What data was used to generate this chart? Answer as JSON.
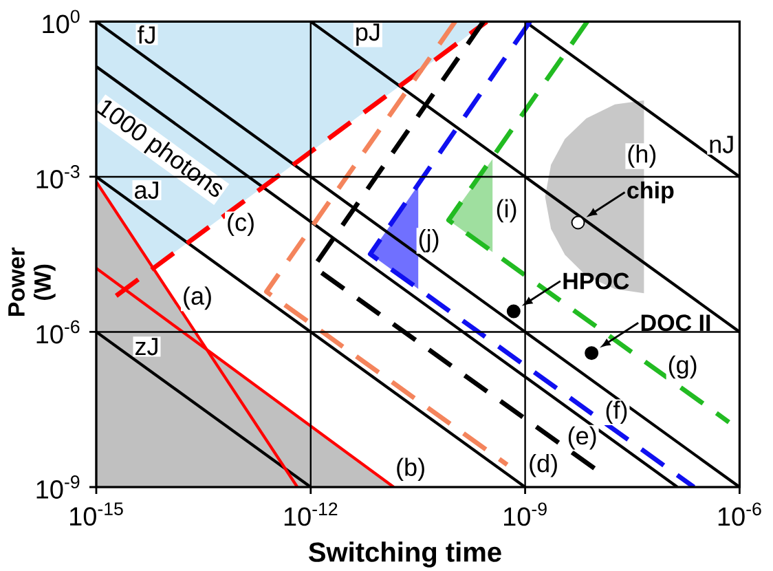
{
  "chart_data": {
    "type": "line",
    "xlabel": "Switching time",
    "ylabel": "Power (W)",
    "log": "xy",
    "xlim": [
      1e-15,
      1e-06
    ],
    "ylim": [
      1e-09,
      1
    ],
    "xticks": [
      {
        "value": 1e-15,
        "label": "10$^{-15}$"
      },
      {
        "value": 1e-12,
        "label": "10$^{-12}$"
      },
      {
        "value": 1e-09,
        "label": "10$^{-9}$"
      },
      {
        "value": 1e-06,
        "label": "10$^{-6}$"
      }
    ],
    "yticks": [
      {
        "value": 1e-09,
        "label": "10$^{-9}$"
      },
      {
        "value": 1e-06,
        "label": "10$^{-6}$"
      },
      {
        "value": 0.001,
        "label": "10$^{-3}$"
      },
      {
        "value": 1,
        "label": "10$^{0}$"
      }
    ],
    "grid": true,
    "series": [
      {
        "type": "area",
        "color": "#cde8f6",
        "x": [
          1e-15,
          6.2e-15,
          2.9e-10
        ],
        "values": [
          null,
          null,
          null
        ],
        "lower": [
          0.0008,
          1.7e-05,
          1
        ],
        "upper": [
          1,
          1,
          1
        ]
      },
      {
        "type": "area",
        "color": "#c0c0c0",
        "x": [
          1e-15,
          3.5e-14,
          1.45e-11
        ],
        "values": [
          0.0008,
          4.7e-07,
          1e-09
        ]
      },
      {
        "type": "area",
        "color": "#c8c8c8",
        "x": [
          1.9e-09,
          2.3e-09,
          3.6e-09,
          7.2e-09,
          1.8e-08,
          4.6e-08
        ],
        "values": [
          null,
          null,
          null,
          null,
          null,
          null
        ],
        "lower": [
          0.00041,
          9.8e-05,
          3.1e-05,
          1.2e-05,
          6.8e-06,
          5.6e-06
        ],
        "upper": [
          0.00041,
          0.0017,
          0.0054,
          0.0135,
          0.025,
          0.03
        ]
      },
      {
        "type": "area",
        "color": "#9fdf9f",
        "x": [
          8.5e-11,
          3.5e-10
        ],
        "values": [
          null,
          null
        ],
        "lower": [
          0.000145,
          3.5e-05
        ],
        "upper": [
          0.000145,
          0.0022
        ]
      },
      {
        "type": "area",
        "color": "#7070ff",
        "x": [
          6.8e-12,
          3.2e-11
        ],
        "values": [
          null,
          null
        ],
        "lower": [
          3.2e-05,
          6.8e-06
        ],
        "upper": [
          3.2e-05,
          0.00069
        ]
      },
      {
        "color": "#000000",
        "x": [
          1e-15,
          1e-06
        ],
        "values": [
          1,
          1e-09
        ]
      },
      {
        "color": "#000000",
        "x": [
          1e-12,
          1e-06
        ],
        "values": [
          1,
          1e-06
        ]
      },
      {
        "color": "#000000",
        "x": [
          1e-09,
          1e-06
        ],
        "values": [
          1,
          0.001
        ]
      },
      {
        "color": "#000000",
        "x": [
          1e-15,
          1e-09
        ],
        "values": [
          0.001,
          1e-09
        ]
      },
      {
        "color": "#000000",
        "x": [
          1e-15,
          1e-12
        ],
        "values": [
          1e-06,
          1e-09
        ]
      },
      {
        "name": "1000 photons",
        "color": "#000000",
        "x": [
          1e-15,
          1.35e-07
        ],
        "values": [
          0.135,
          1e-09
        ]
      },
      {
        "color": "#ff0000",
        "x": [
          1e-15,
          6.5e-13
        ],
        "values": [
          0.0008,
          1e-09
        ]
      },
      {
        "color": "#ff0000",
        "x": [
          1e-15,
          1.45e-11
        ],
        "values": [
          1.7e-05,
          1e-09
        ]
      },
      {
        "color": "#ff0000",
        "line_style": "dashed",
        "x": [
          1.9e-15,
          2.9e-10
        ],
        "values": [
          5e-06,
          1
        ]
      },
      {
        "color": "#f4845c",
        "line_style": "dashed",
        "x": [
          1.05e-10,
          2.4e-13,
          5.6e-10
        ],
        "values": [
          1,
          6e-06,
          2.7e-09
        ]
      },
      {
        "color": "#000000",
        "line_style": "dashed",
        "x": [
          2.6e-10,
          1.1e-12,
          1.07e-08
        ],
        "values": [
          1,
          1.8e-05,
          2e-09
        ]
      },
      {
        "color": "#1010f0",
        "line_style": "dashed",
        "x": [
          1.17e-09,
          6.8e-12,
          2.3e-07
        ],
        "values": [
          1,
          3.2e-05,
          1e-09
        ]
      },
      {
        "color": "#22bb22",
        "line_style": "dashed",
        "x": [
          7.4e-09,
          8.5e-11,
          7.1e-07
        ],
        "values": [
          1,
          0.000145,
          1.8e-08
        ]
      },
      {
        "type": "scatter",
        "colors": [
          "#000000",
          "#000000",
          "#ffffff"
        ],
        "marker": "circle",
        "x": [
          6.9e-10,
          8.5e-09,
          5.5e-09
        ],
        "values": [
          2.5e-06,
          3.9e-07,
          0.00013
        ]
      }
    ],
    "annotations": [
      {
        "text": "fJ",
        "x": 5.1e-15,
        "y": 0.56
      },
      {
        "text": "pJ",
        "x": 6.3e-12,
        "y": 0.56
      },
      {
        "text": "nJ",
        "x": 5.6e-07,
        "y": 0.0042
      },
      {
        "text": "aJ",
        "x": 5.1e-15,
        "y": 0.00055
      },
      {
        "text": "zJ",
        "x": 5.1e-15,
        "y": 5.2e-07
      },
      {
        "text": "(a)",
        "x": 2.6e-14,
        "y": 4.5e-06
      },
      {
        "text": "(b)",
        "x": 2.5e-11,
        "y": 2.2e-09
      },
      {
        "text": "(c)",
        "x": 1.05e-13,
        "y": 0.00012
      },
      {
        "text": "(d)",
        "x": 1.8e-09,
        "y": 2.6e-09
      },
      {
        "text": "(e)",
        "x": 6.3e-09,
        "y": 8.9e-09
      },
      {
        "text": "(f)",
        "x": 1.9e-08,
        "y": 2.8e-08
      },
      {
        "text": "(g)",
        "x": 1.6e-07,
        "y": 2.1e-07
      },
      {
        "text": "(h)",
        "x": 4.3e-08,
        "y": 0.0025
      },
      {
        "text": "(i)",
        "x": 5.5e-10,
        "y": 0.00022
      },
      {
        "text": "(j)",
        "x": 4.5e-11,
        "y": 5.8e-05
      },
      {
        "text": "HPOC",
        "x": 6.9e-10,
        "y": 2.5e-06
      },
      {
        "text": "DOC II",
        "x": 8.5e-09,
        "y": 3.9e-07
      },
      {
        "text": "chip",
        "x": 5.5e-09,
        "y": 0.00013
      }
    ]
  }
}
